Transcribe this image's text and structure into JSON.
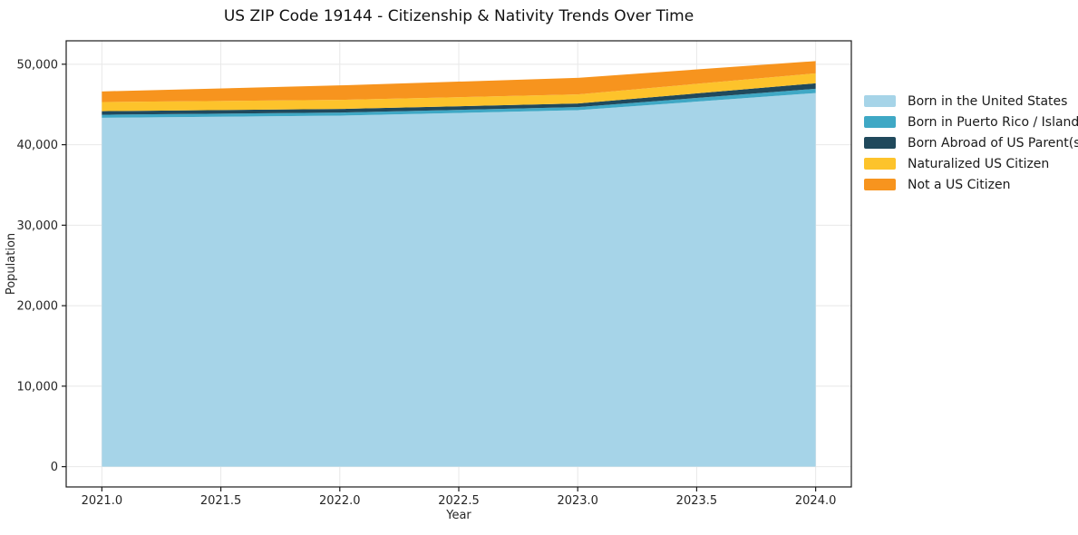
{
  "chart_data": {
    "type": "area",
    "stacked": true,
    "title": "US ZIP Code 19144 - Citizenship & Nativity Trends Over Time",
    "xlabel": "Year",
    "ylabel": "Population",
    "x": [
      2021,
      2022,
      2023,
      2024
    ],
    "series": [
      {
        "id": "born-us",
        "name": "Born in the United States",
        "color": "#A6D4E8",
        "values": [
          43350,
          43610,
          44290,
          46420
        ]
      },
      {
        "id": "born-pr",
        "name": "Born in Puerto Rico / Islands",
        "color": "#3FA8C5",
        "values": [
          370,
          380,
          380,
          530
        ]
      },
      {
        "id": "born-abroad",
        "name": "Born Abroad of US Parent(s)",
        "color": "#20495C",
        "values": [
          450,
          450,
          450,
          680
        ]
      },
      {
        "id": "naturalized",
        "name": "Naturalized US Citizen",
        "color": "#FDC32B",
        "values": [
          1130,
          1130,
          1130,
          1240
        ]
      },
      {
        "id": "not-citizen",
        "name": "Not a US Citizen",
        "color": "#F7941E",
        "values": [
          1320,
          1800,
          2060,
          1520
        ]
      }
    ],
    "xlim": [
      2020.85,
      2024.15
    ],
    "ylim": [
      -2520,
      52910
    ],
    "xticks": {
      "values": [
        2021,
        2021.5,
        2022,
        2022.5,
        2023,
        2023.5,
        2024
      ],
      "labels": [
        "2021.0",
        "2021.5",
        "2022.0",
        "2022.5",
        "2023.0",
        "2023.5",
        "2024.0"
      ]
    },
    "yticks": {
      "values": [
        0,
        10000,
        20000,
        30000,
        40000,
        50000
      ],
      "labels": [
        "0",
        "10,000",
        "20,000",
        "30,000",
        "40,000",
        "50,000"
      ]
    },
    "grid": true,
    "grid_color": "#e8e8e8",
    "spine_color": "#1b1b1b",
    "legend_position": "right"
  }
}
